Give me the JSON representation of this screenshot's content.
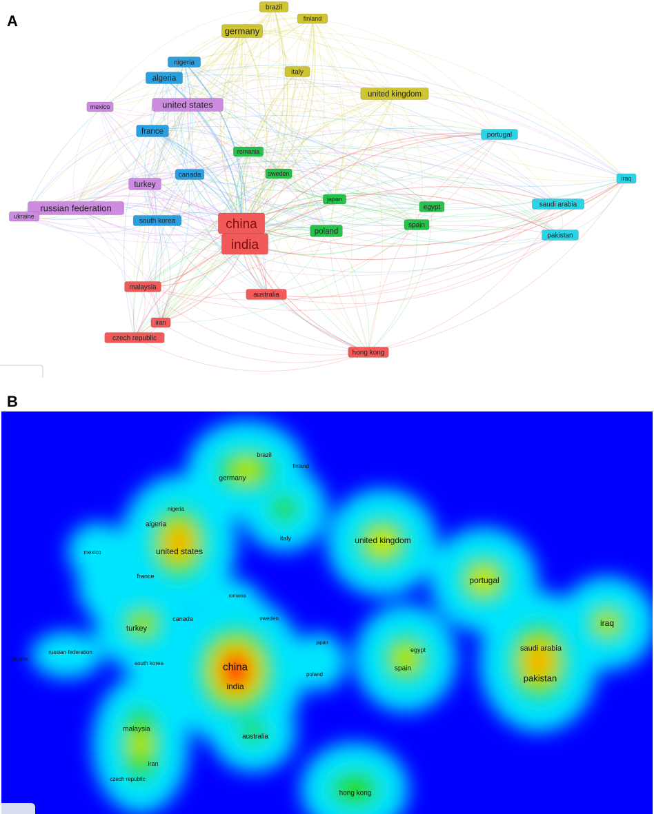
{
  "panels": {
    "a": {
      "letter": "A"
    },
    "b": {
      "letter": "B"
    }
  },
  "clusters": {
    "red": {
      "color": "#f25a5a",
      "edge": "#f26a6a"
    },
    "green": {
      "color": "#27c24c",
      "edge": "#5fd27a"
    },
    "blue": {
      "color": "#2aa0e0",
      "edge": "#4aa8e6"
    },
    "yellow": {
      "color": "#cfc431",
      "edge": "#d8cf58"
    },
    "purple": {
      "color": "#cc8ae0",
      "edge": "#d79be6"
    },
    "cyan": {
      "color": "#2ad4e6",
      "edge": "#4ed6e8"
    }
  },
  "nodes": [
    {
      "id": "brazil",
      "label": "brazil",
      "cluster": "yellow",
      "weight": 2
    },
    {
      "id": "finland",
      "label": "finland",
      "cluster": "yellow",
      "weight": 1
    },
    {
      "id": "germany",
      "label": "germany",
      "cluster": "yellow",
      "weight": 4
    },
    {
      "id": "italy",
      "label": "italy",
      "cluster": "yellow",
      "weight": 2
    },
    {
      "id": "united_kingdom",
      "label": "united kingdom",
      "cluster": "yellow",
      "weight": 3
    },
    {
      "id": "nigeria",
      "label": "nigeria",
      "cluster": "blue",
      "weight": 2
    },
    {
      "id": "algeria",
      "label": "algeria",
      "cluster": "blue",
      "weight": 3
    },
    {
      "id": "france",
      "label": "france",
      "cluster": "blue",
      "weight": 3
    },
    {
      "id": "canada",
      "label": "canada",
      "cluster": "blue",
      "weight": 2
    },
    {
      "id": "south_korea",
      "label": "south korea",
      "cluster": "blue",
      "weight": 2
    },
    {
      "id": "mexico",
      "label": "mexico",
      "cluster": "purple",
      "weight": 1
    },
    {
      "id": "united_states",
      "label": "united states",
      "cluster": "purple",
      "weight": 4
    },
    {
      "id": "turkey",
      "label": "turkey",
      "cluster": "purple",
      "weight": 3
    },
    {
      "id": "russian_federation",
      "label": "russian federation",
      "cluster": "purple",
      "weight": 4
    },
    {
      "id": "ukraine",
      "label": "ukraine",
      "cluster": "purple",
      "weight": 1
    },
    {
      "id": "romania",
      "label": "romania",
      "cluster": "green",
      "weight": 1
    },
    {
      "id": "sweden",
      "label": "sweden",
      "cluster": "green",
      "weight": 1
    },
    {
      "id": "japan",
      "label": "japan",
      "cluster": "green",
      "weight": 1
    },
    {
      "id": "poland",
      "label": "poland",
      "cluster": "green",
      "weight": 3
    },
    {
      "id": "egypt",
      "label": "egypt",
      "cluster": "green",
      "weight": 2
    },
    {
      "id": "spain",
      "label": "spain",
      "cluster": "green",
      "weight": 2
    },
    {
      "id": "china",
      "label": "china",
      "cluster": "red",
      "weight": 6
    },
    {
      "id": "india",
      "label": "india",
      "cluster": "red",
      "weight": 6
    },
    {
      "id": "malaysia",
      "label": "malaysia",
      "cluster": "red",
      "weight": 2
    },
    {
      "id": "australia",
      "label": "australia",
      "cluster": "red",
      "weight": 2
    },
    {
      "id": "iran",
      "label": "iran",
      "cluster": "red",
      "weight": 1
    },
    {
      "id": "czech_republic",
      "label": "czech republic",
      "cluster": "red",
      "weight": 2
    },
    {
      "id": "hong_kong",
      "label": "hong kong",
      "cluster": "red",
      "weight": 2
    },
    {
      "id": "portugal",
      "label": "portugal",
      "cluster": "cyan",
      "weight": 2
    },
    {
      "id": "iraq",
      "label": "iraq",
      "cluster": "cyan",
      "weight": 1
    },
    {
      "id": "saudi_arabia",
      "label": "saudi arabia",
      "cluster": "cyan",
      "weight": 2
    },
    {
      "id": "pakistan",
      "label": "pakistan",
      "cluster": "cyan",
      "weight": 2
    }
  ],
  "density": {
    "colors": {
      "background": "#0000ff",
      "low": "#00e5ff",
      "mid": "#22dd00",
      "high": "#ffee00",
      "peak": "#ff2200"
    },
    "labels": [
      {
        "id": "brazil",
        "text": "brazil"
      },
      {
        "id": "finland",
        "text": "finland"
      },
      {
        "id": "germany",
        "text": "germany"
      },
      {
        "id": "nigeria",
        "text": "nigeria"
      },
      {
        "id": "algeria",
        "text": "algeria"
      },
      {
        "id": "italy",
        "text": "italy"
      },
      {
        "id": "united_kingdom",
        "text": "united kingdom"
      },
      {
        "id": "mexico",
        "text": "mexico"
      },
      {
        "id": "united_states",
        "text": "united states"
      },
      {
        "id": "france",
        "text": "france"
      },
      {
        "id": "portugal",
        "text": "portugal"
      },
      {
        "id": "romania",
        "text": "romania"
      },
      {
        "id": "canada",
        "text": "canada"
      },
      {
        "id": "sweden",
        "text": "sweden"
      },
      {
        "id": "turkey",
        "text": "turkey"
      },
      {
        "id": "iraq",
        "text": "iraq"
      },
      {
        "id": "japan",
        "text": "japan"
      },
      {
        "id": "egypt",
        "text": "egypt"
      },
      {
        "id": "saudi_arabia",
        "text": "saudi arabia"
      },
      {
        "id": "ukraine",
        "text": "ukraine"
      },
      {
        "id": "russian_federation",
        "text": "russian federation"
      },
      {
        "id": "china",
        "text": "china"
      },
      {
        "id": "south_korea",
        "text": "south korea"
      },
      {
        "id": "spain",
        "text": "spain"
      },
      {
        "id": "poland",
        "text": "poland"
      },
      {
        "id": "india",
        "text": "india"
      },
      {
        "id": "pakistan",
        "text": "pakistan"
      },
      {
        "id": "malaysia",
        "text": "malaysia"
      },
      {
        "id": "australia",
        "text": "australia"
      },
      {
        "id": "iran",
        "text": "iran"
      },
      {
        "id": "czech_republic",
        "text": "czech republic"
      },
      {
        "id": "hong_kong",
        "text": "hong kong"
      }
    ],
    "hotspots": [
      {
        "id": "china_india",
        "intensity": 1.0
      },
      {
        "id": "united_states",
        "intensity": 0.85
      },
      {
        "id": "pakistan",
        "intensity": 0.85
      },
      {
        "id": "portugal",
        "intensity": 0.7
      },
      {
        "id": "united_kingdom",
        "intensity": 0.7
      },
      {
        "id": "iraq",
        "intensity": 0.6
      },
      {
        "id": "spain",
        "intensity": 0.6
      },
      {
        "id": "germany_brazil",
        "intensity": 0.55
      },
      {
        "id": "italy",
        "intensity": 0.45
      },
      {
        "id": "turkey",
        "intensity": 0.5
      },
      {
        "id": "malaysia",
        "intensity": 0.5
      },
      {
        "id": "australia",
        "intensity": 0.4
      },
      {
        "id": "hong_kong",
        "intensity": 0.4
      }
    ]
  }
}
